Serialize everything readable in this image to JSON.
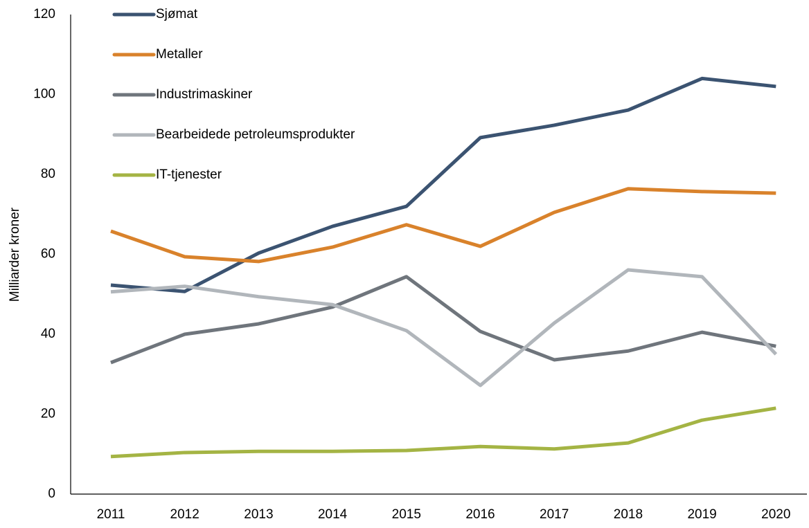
{
  "chart_data": {
    "type": "line",
    "y_label": "Milliarder kroner",
    "categories": [
      "2011",
      "2012",
      "2013",
      "2014",
      "2015",
      "2016",
      "2017",
      "2018",
      "2019",
      "2020"
    ],
    "series": [
      {
        "name": "Sjømat",
        "color": "#3b5371",
        "values": [
          52.3,
          50.7,
          60.3,
          67,
          72,
          89.2,
          92.3,
          96.1,
          104,
          102
        ]
      },
      {
        "name": "Metaller",
        "color": "#d9822b",
        "values": [
          65.8,
          59.4,
          58.2,
          61.8,
          67.4,
          62,
          70.5,
          76.4,
          75.7,
          75.3
        ]
      },
      {
        "name": "Industrimaskiner",
        "color": "#6f757c",
        "values": [
          32.9,
          40,
          42.6,
          46.8,
          54.4,
          40.7,
          33.6,
          35.8,
          40.5,
          37
        ]
      },
      {
        "name": "Bearbeidede petroleumsprodukter",
        "color": "#b1b6bb",
        "values": [
          50.6,
          52,
          49.4,
          47.4,
          40.9,
          27.2,
          42.8,
          56.1,
          54.4,
          35
        ]
      },
      {
        "name": "IT-tjenester",
        "color": "#a4b444",
        "values": [
          9.4,
          10.4,
          10.7,
          10.7,
          10.9,
          11.9,
          11.3,
          12.8,
          18.5,
          21.5
        ]
      }
    ],
    "ylim": [
      0,
      120
    ],
    "yticks": [
      0,
      20,
      40,
      60,
      80,
      100,
      120
    ],
    "grid": false,
    "legend": "upper left"
  }
}
